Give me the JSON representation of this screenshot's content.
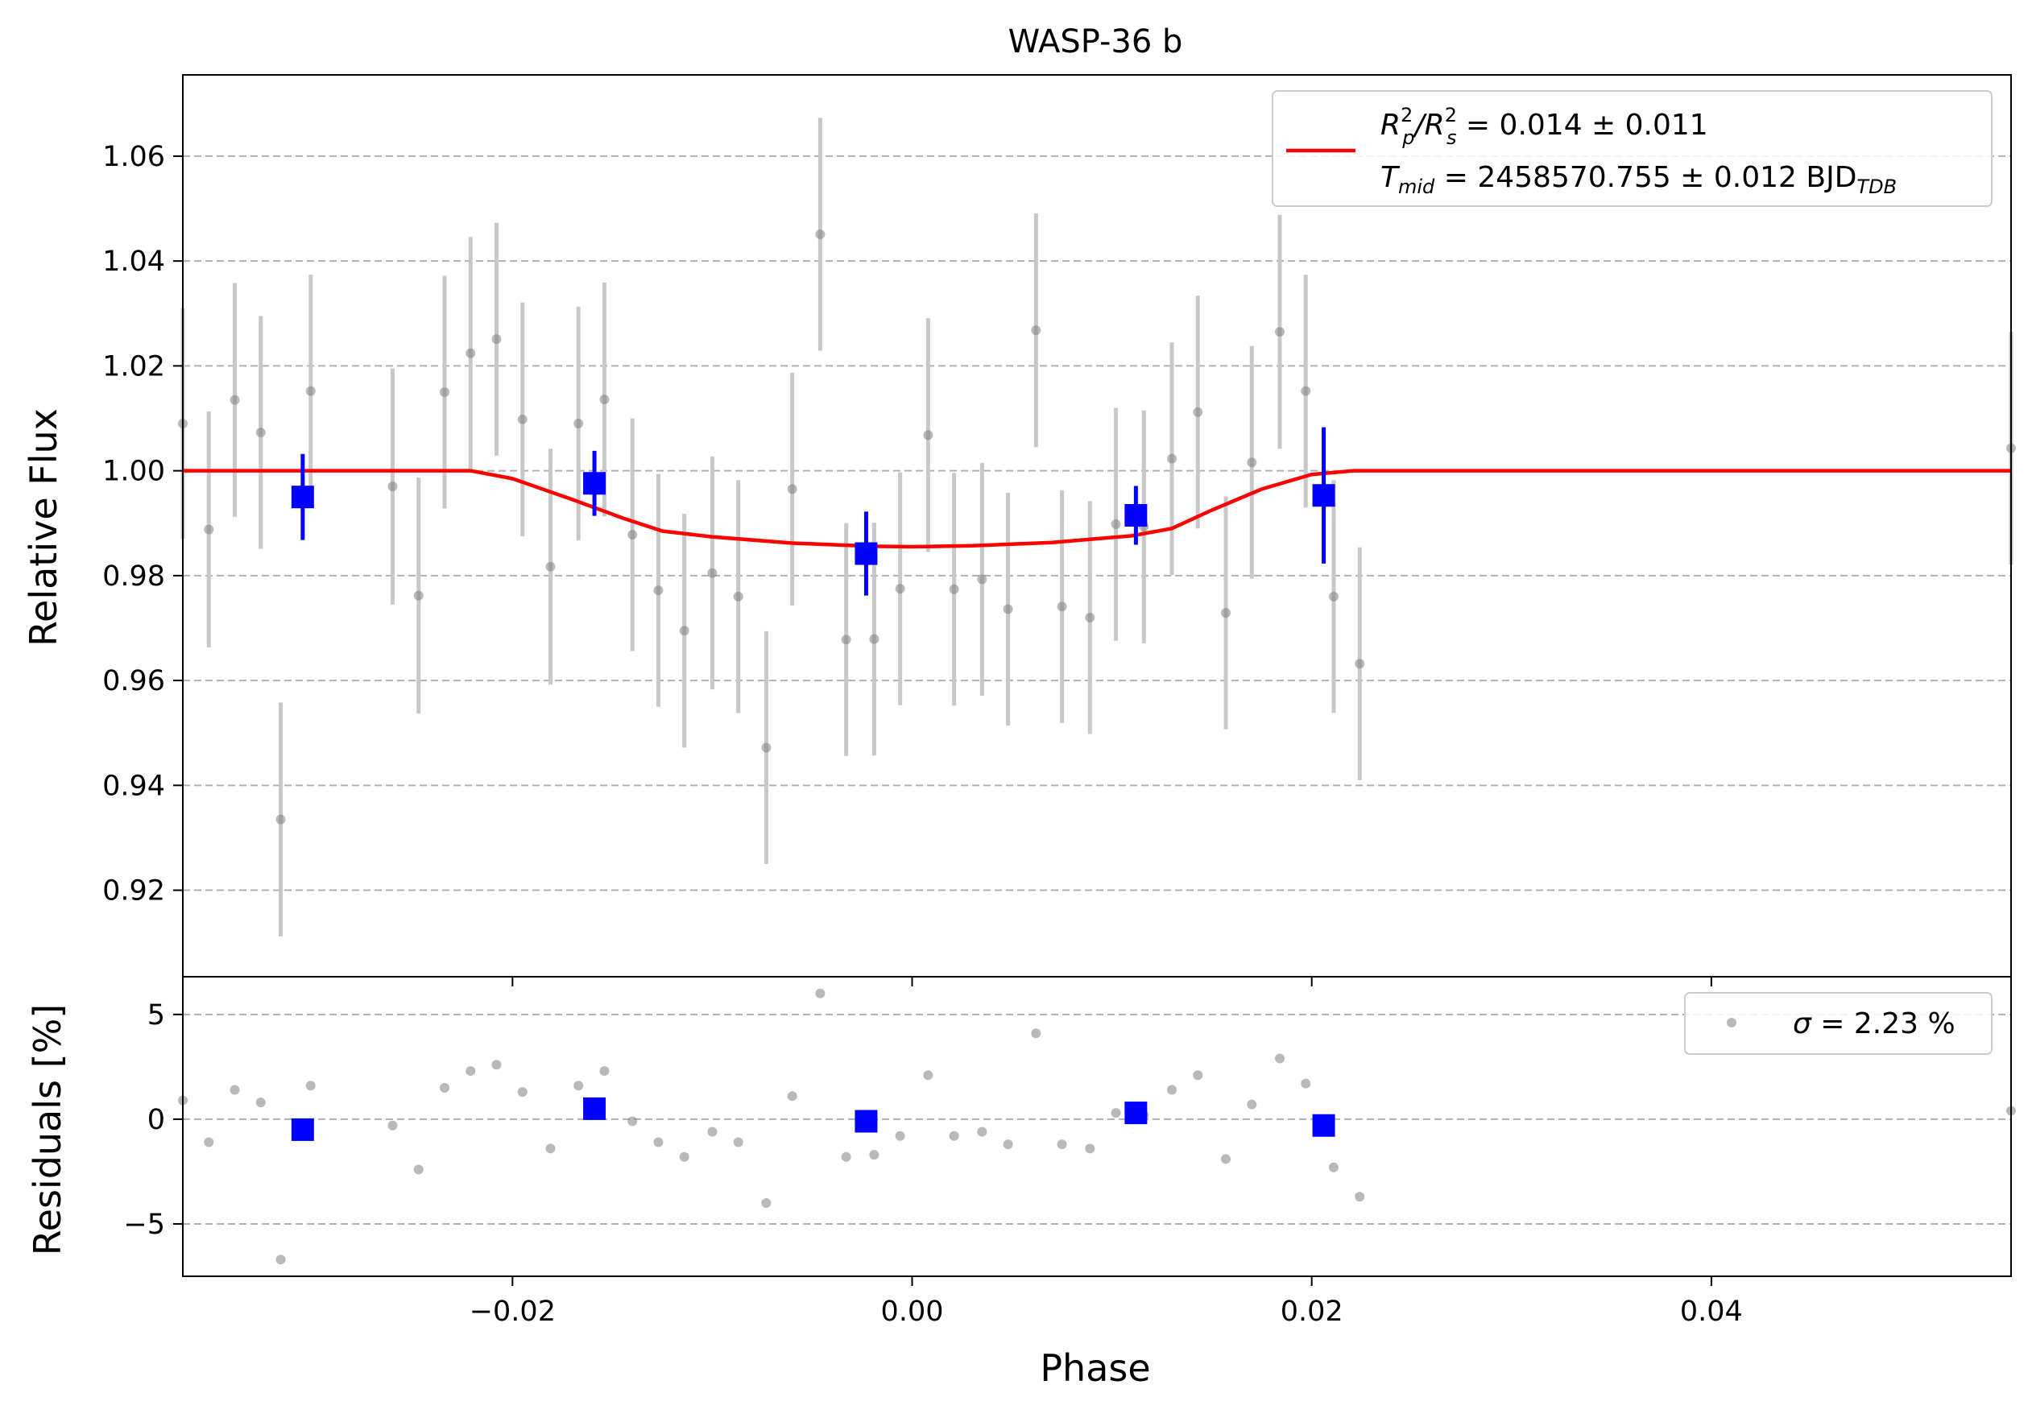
{
  "colors": {
    "data_points": "#808080",
    "error_bars": "#c8c8c8",
    "binned": "#0000ff",
    "model": "#ff0000",
    "grid": "#b0b0b0",
    "axes": "#000000"
  },
  "chart_data": [
    {
      "type": "scatter",
      "title": "WASP-36 b",
      "xlabel": "",
      "ylabel": "Relative Flux",
      "xlim": [
        -0.0365,
        0.055
      ],
      "ylim": [
        0.9035,
        1.0755
      ],
      "grid": "horizontal-dashed",
      "legend_position": "top-right",
      "xticks": [
        -0.02,
        0.0,
        0.02,
        0.04
      ],
      "yticks": [
        0.92,
        0.94,
        0.96,
        0.98,
        1.0,
        1.02,
        1.04,
        1.06
      ],
      "ytick_labels": [
        "0.92",
        "0.94",
        "0.96",
        "0.98",
        "1.00",
        "1.02",
        "1.04",
        "1.06"
      ],
      "legend": {
        "line1_sym": "R",
        "line1_sup1": "2",
        "line1_sub1": "p",
        "line1_slash": "/R",
        "line1_sup2": "2",
        "line1_sub2": "s",
        "line1_value": " = 0.014 ± 0.011",
        "line2_sym": "T",
        "line2_sub": "mid",
        "line2_value": " = 2458570.755 ± 0.012 BJD",
        "line2_unit_sub": "TDB"
      },
      "series": [
        {
          "kind": "data",
          "x": [
            -0.0365,
            -0.0352,
            -0.0339,
            -0.0326,
            -0.0316,
            -0.0301,
            -0.026,
            -0.0247,
            -0.0234,
            -0.0221,
            -0.0208,
            -0.0195,
            -0.0181,
            -0.0167,
            -0.0154,
            -0.014,
            -0.0127,
            -0.0114,
            -0.01,
            -0.0087,
            -0.0073,
            -0.006,
            -0.0046,
            -0.0033,
            -0.0019,
            -0.0006,
            0.0008,
            0.0021,
            0.0035,
            0.0048,
            0.0062,
            0.0075,
            0.0089,
            0.0102,
            0.0116,
            0.013,
            0.0143,
            0.0157,
            0.017,
            0.0184,
            0.0197,
            0.0211,
            0.0224,
            0.055
          ],
          "y": [
            1.009,
            0.9888,
            1.0135,
            1.0073,
            0.9335,
            1.0152,
            0.997,
            0.9762,
            1.015,
            1.0224,
            1.0251,
            1.0098,
            0.9817,
            1.009,
            1.0136,
            0.9878,
            0.9772,
            0.9695,
            0.9805,
            0.976,
            0.9472,
            0.9965,
            1.0451,
            0.9678,
            0.9679,
            0.9775,
            1.0068,
            0.9774,
            0.9793,
            0.9736,
            1.0268,
            0.9741,
            0.972,
            0.9898,
            0.9893,
            1.0023,
            1.0112,
            0.9729,
            1.0016,
            1.0265,
            1.0152,
            0.976,
            0.9632,
            1.0043
          ],
          "yerr": [
            0.022,
            0.0225,
            0.0223,
            0.0222,
            0.0223,
            0.0222,
            0.0225,
            0.0225,
            0.0222,
            0.0222,
            0.0222,
            0.0223,
            0.0225,
            0.0223,
            0.0223,
            0.0222,
            0.0222,
            0.0223,
            0.0222,
            0.0222,
            0.0222,
            0.0222,
            0.0222,
            0.0222,
            0.0222,
            0.0222,
            0.0223,
            0.0222,
            0.0222,
            0.0222,
            0.0223,
            0.0222,
            0.0222,
            0.0222,
            0.0222,
            0.0222,
            0.0222,
            0.0222,
            0.0222,
            0.0223,
            0.0222,
            0.0222,
            0.0222,
            0.0222
          ]
        },
        {
          "kind": "binned",
          "x": [
            -0.0305,
            -0.0159,
            -0.0023,
            0.0112,
            0.0206
          ],
          "y": [
            0.995,
            0.9976,
            0.9842,
            0.9915,
            0.9953
          ],
          "yerr": [
            0.0082,
            0.0062,
            0.008,
            0.0056,
            0.013
          ]
        },
        {
          "kind": "model",
          "x": [
            -0.0365,
            -0.0221,
            -0.02,
            -0.017,
            -0.0145,
            -0.0125,
            -0.01,
            -0.006,
            -0.002,
            0.0,
            0.003,
            0.007,
            0.011,
            0.013,
            0.015,
            0.0175,
            0.02,
            0.0221,
            0.055
          ],
          "y": [
            1.0,
            1.0,
            0.9985,
            0.9945,
            0.991,
            0.9885,
            0.9874,
            0.9862,
            0.9856,
            0.9855,
            0.9857,
            0.9863,
            0.9876,
            0.989,
            0.9925,
            0.9965,
            0.9993,
            1.0,
            1.0
          ]
        }
      ]
    },
    {
      "type": "scatter",
      "xlabel": "Phase",
      "ylabel": "Residuals [%]",
      "xlim": [
        -0.0365,
        0.055
      ],
      "ylim": [
        -7.5,
        6.8
      ],
      "grid": "horizontal-dashed",
      "legend_position": "top-right",
      "xticks": [
        -0.02,
        0.0,
        0.02,
        0.04
      ],
      "xtick_labels": [
        "−0.02",
        "0.00",
        "0.02",
        "0.04"
      ],
      "yticks": [
        -5,
        0,
        5
      ],
      "ytick_labels": [
        "−5",
        "0",
        "5"
      ],
      "legend": {
        "label_sym": "σ",
        "label_value": " = 2.23 %"
      },
      "series": [
        {
          "kind": "data",
          "x": [
            -0.0365,
            -0.0352,
            -0.0339,
            -0.0326,
            -0.0316,
            -0.0301,
            -0.026,
            -0.0247,
            -0.0234,
            -0.0221,
            -0.0208,
            -0.0195,
            -0.0181,
            -0.0167,
            -0.0154,
            -0.014,
            -0.0127,
            -0.0114,
            -0.01,
            -0.0087,
            -0.0073,
            -0.006,
            -0.0046,
            -0.0033,
            -0.0019,
            -0.0006,
            0.0008,
            0.0021,
            0.0035,
            0.0048,
            0.0062,
            0.0075,
            0.0089,
            0.0102,
            0.0116,
            0.013,
            0.0143,
            0.0157,
            0.017,
            0.0184,
            0.0197,
            0.0211,
            0.0224,
            0.055
          ],
          "y": [
            0.9,
            -1.1,
            1.4,
            0.8,
            -6.7,
            1.6,
            -0.3,
            -2.4,
            1.5,
            2.3,
            2.6,
            1.3,
            -1.4,
            1.6,
            2.3,
            -0.1,
            -1.1,
            -1.8,
            -0.6,
            -1.1,
            -4.0,
            1.1,
            6.0,
            -1.8,
            -1.7,
            -0.8,
            2.1,
            -0.8,
            -0.6,
            -1.2,
            4.1,
            -1.2,
            -1.4,
            0.3,
            0.2,
            1.4,
            2.1,
            -1.9,
            0.7,
            2.9,
            1.7,
            -2.3,
            -3.7,
            0.4
          ]
        },
        {
          "kind": "binned",
          "x": [
            -0.0305,
            -0.0159,
            -0.0023,
            0.0112,
            0.0206
          ],
          "y": [
            -0.5,
            0.5,
            -0.1,
            0.3,
            -0.3
          ]
        }
      ]
    }
  ]
}
